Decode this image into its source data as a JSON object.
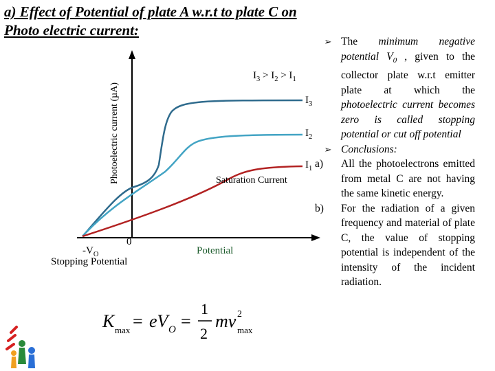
{
  "title": "a) Effect of Potential of plate A w.r.t to plate C on Photo electric current:",
  "chart": {
    "y_axis_label": "Photoelectric current (µA)",
    "x_axis_label": "Potential",
    "intensity_relation": "I3 > I2 > I1",
    "curve_labels": [
      "I3",
      "I2",
      "I1"
    ],
    "saturation_label": "Saturation Current",
    "neg_v0_label": "-VO",
    "zero_label": "0",
    "stopping_label": "Stopping Potential",
    "curve_colors": [
      "#2f6b8d",
      "#43a4c4",
      "#b22222"
    ]
  },
  "formula": "Kmax = eVO = 1/2 mv²max",
  "right_text": {
    "point1_lead": "The ",
    "point1_italic": "minimum negative potential V",
    "point1_sub": "0",
    "point1_rest": " , given to the collector plate w.r.t emitter plate at which the ",
    "point1_italic2": "photoelectric current becomes zero is called stopping potential or cut off potential",
    "conclusions": "Conclusions:",
    "items": [
      {
        "marker": "a)",
        "text": "All the photoelectrons emitted from metal C are not having the same kinetic energy."
      },
      {
        "marker": "b)",
        "text": "For the radiation of a given frequency and material of plate C, the value of stopping potential is independent of the intensity of the incident radiation."
      }
    ]
  }
}
